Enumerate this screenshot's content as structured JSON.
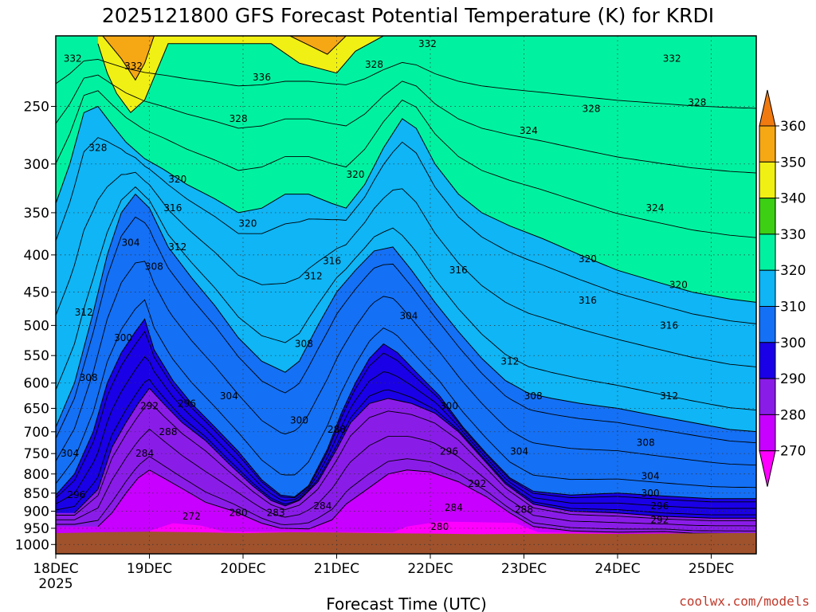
{
  "chart_data": {
    "type": "contour",
    "title": "2025121800 GFS Forecast Potential Temperature (K) for KRDI",
    "xlabel": "Forecast Time (UTC)",
    "ylabel": "",
    "x_ticks": [
      "18DEC",
      "19DEC",
      "20DEC",
      "21DEC",
      "22DEC",
      "23DEC",
      "24DEC",
      "25DEC"
    ],
    "x_year_label": "2025",
    "x_range": [
      "18DEC 00Z",
      "25DEC 12Z"
    ],
    "y_ticks": [
      250,
      300,
      350,
      400,
      450,
      500,
      550,
      600,
      650,
      700,
      750,
      800,
      850,
      900,
      950,
      1000
    ],
    "y_range": [
      1030,
      200
    ],
    "y_scale": "log-pressure",
    "grid": true,
    "colorbar": {
      "levels": [
        270,
        280,
        290,
        300,
        310,
        320,
        330,
        340,
        350,
        360
      ],
      "colors": [
        "#ff00ff",
        "#c800ff",
        "#8a1ce8",
        "#1a00e6",
        "#1470f5",
        "#0fb5f5",
        "#00f2a0",
        "#3ccf14",
        "#f0f014",
        "#f5a814",
        "#f07a10"
      ]
    },
    "contour_labels": [
      {
        "text": "332",
        "t": 0.18,
        "p": 215
      },
      {
        "text": "332",
        "t": 0.83,
        "p": 220
      },
      {
        "text": "336",
        "t": 2.2,
        "p": 228
      },
      {
        "text": "332",
        "t": 3.97,
        "p": 205
      },
      {
        "text": "328",
        "t": 3.4,
        "p": 219
      },
      {
        "text": "332",
        "t": 6.58,
        "p": 215
      },
      {
        "text": "328",
        "t": 0.45,
        "p": 285
      },
      {
        "text": "328",
        "t": 1.95,
        "p": 260
      },
      {
        "text": "328",
        "t": 5.72,
        "p": 252
      },
      {
        "text": "328",
        "t": 6.85,
        "p": 247
      },
      {
        "text": "324",
        "t": 5.05,
        "p": 270
      },
      {
        "text": "324",
        "t": 6.4,
        "p": 345
      },
      {
        "text": "320",
        "t": 1.3,
        "p": 315
      },
      {
        "text": "320",
        "t": 3.2,
        "p": 310
      },
      {
        "text": "320",
        "t": 2.05,
        "p": 362
      },
      {
        "text": "320",
        "t": 5.68,
        "p": 405
      },
      {
        "text": "320",
        "t": 6.65,
        "p": 440
      },
      {
        "text": "316",
        "t": 1.25,
        "p": 345
      },
      {
        "text": "316",
        "t": 2.95,
        "p": 408
      },
      {
        "text": "316",
        "t": 4.3,
        "p": 420
      },
      {
        "text": "316",
        "t": 5.68,
        "p": 462
      },
      {
        "text": "316",
        "t": 6.55,
        "p": 500
      },
      {
        "text": "312",
        "t": 1.3,
        "p": 390
      },
      {
        "text": "312",
        "t": 2.75,
        "p": 428
      },
      {
        "text": "312",
        "t": 0.3,
        "p": 480
      },
      {
        "text": "312",
        "t": 4.85,
        "p": 560
      },
      {
        "text": "312",
        "t": 6.55,
        "p": 625
      },
      {
        "text": "308",
        "t": 1.05,
        "p": 415
      },
      {
        "text": "308",
        "t": 2.65,
        "p": 530
      },
      {
        "text": "308",
        "t": 0.35,
        "p": 590
      },
      {
        "text": "308",
        "t": 5.1,
        "p": 625
      },
      {
        "text": "308",
        "t": 6.3,
        "p": 725
      },
      {
        "text": "304",
        "t": 0.8,
        "p": 385
      },
      {
        "text": "304",
        "t": 3.77,
        "p": 485
      },
      {
        "text": "304",
        "t": 1.85,
        "p": 625
      },
      {
        "text": "304",
        "t": 0.15,
        "p": 750
      },
      {
        "text": "304",
        "t": 4.95,
        "p": 745
      },
      {
        "text": "304",
        "t": 6.35,
        "p": 805
      },
      {
        "text": "300",
        "t": 0.72,
        "p": 520
      },
      {
        "text": "300",
        "t": 2.6,
        "p": 675
      },
      {
        "text": "300",
        "t": 4.2,
        "p": 645
      },
      {
        "text": "300",
        "t": 6.35,
        "p": 850
      },
      {
        "text": "296",
        "t": 1.4,
        "p": 640
      },
      {
        "text": "296",
        "t": 4.2,
        "p": 745
      },
      {
        "text": "296",
        "t": 0.22,
        "p": 855
      },
      {
        "text": "296",
        "t": 6.45,
        "p": 885
      },
      {
        "text": "292",
        "t": 1.0,
        "p": 645
      },
      {
        "text": "292",
        "t": 4.5,
        "p": 825
      },
      {
        "text": "292",
        "t": 6.45,
        "p": 925
      },
      {
        "text": "288",
        "t": 1.2,
        "p": 700
      },
      {
        "text": "288",
        "t": 3.0,
        "p": 695
      },
      {
        "text": "288",
        "t": 5.0,
        "p": 895
      },
      {
        "text": "284",
        "t": 0.95,
        "p": 750
      },
      {
        "text": "284",
        "t": 2.85,
        "p": 885
      },
      {
        "text": "284",
        "t": 4.25,
        "p": 890
      },
      {
        "text": "283",
        "t": 2.35,
        "p": 905
      },
      {
        "text": "280",
        "t": 1.95,
        "p": 905
      },
      {
        "text": "280",
        "t": 4.1,
        "p": 945
      },
      {
        "text": "272",
        "t": 1.45,
        "p": 915
      }
    ]
  },
  "credit": "coolwx.com/models",
  "icons": {
    "colorbar_top": "triangle-up",
    "colorbar_bottom": "triangle-down"
  }
}
